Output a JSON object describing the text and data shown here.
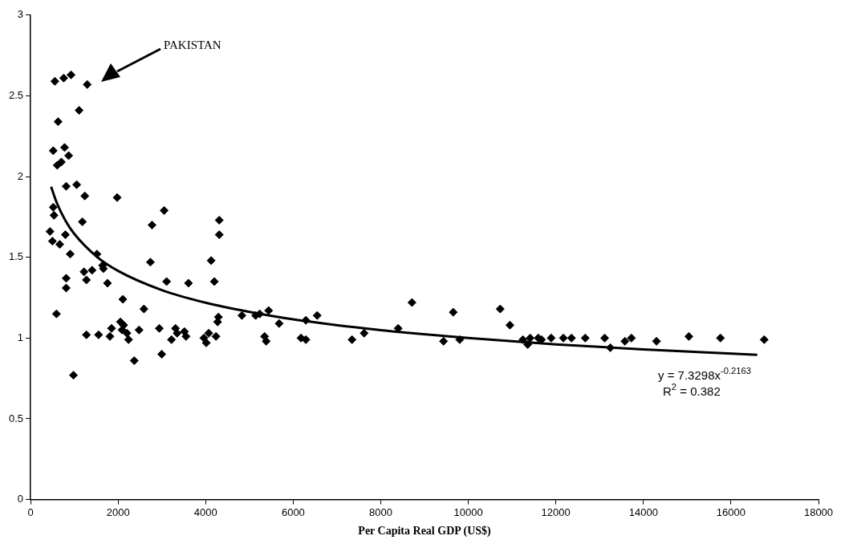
{
  "chart_data": {
    "type": "scatter",
    "xlabel": "Per Capita Real GDP (US$)",
    "xlim": [
      0,
      18000
    ],
    "xticks": [
      0,
      2000,
      4000,
      6000,
      8000,
      10000,
      12000,
      14000,
      16000,
      18000
    ],
    "ylim": [
      0,
      3
    ],
    "yticks": [
      0,
      0.5,
      1,
      1.5,
      2,
      2.5,
      3
    ],
    "grid": false,
    "legend": false,
    "marker": "diamond",
    "annotations": [
      "PAKISTAN",
      "y = 7.3298x$^{-0.2163}$",
      "R$^{2}$ = 0.382"
    ],
    "series": [
      {
        "color": "#000000",
        "x": [
          555,
          758,
          925,
          1295,
          1110,
          629,
          518,
          777,
          870,
          703,
          610,
          814,
          1054,
          1239,
          1979,
          3052,
          4310,
          4310,
          2775,
          4125,
          518,
          536,
          444,
          795,
          499,
          666,
          906,
          1184,
          1517,
          2738,
          1221,
          1406,
          1646,
          1665,
          814,
          1276,
          814,
          1757,
          3108,
          3607,
          4199,
          2109,
          2590,
          592,
          4292,
          4273,
          4828,
          5142,
          5235,
          5438,
          2053,
          2127,
          1850,
          2090,
          2201,
          2238,
          2479,
          1276,
          1554,
          1813,
          2941,
          3311,
          3348,
          3515,
          3552,
          3219,
          4070,
          4236,
          3959,
          4014,
          2997,
          2368,
          980,
          5346,
          5383,
          5679,
          6178,
          6289,
          6289,
          6548,
          7344,
          7621,
          8398,
          8713,
          9434,
          9804,
          9656,
          10729,
          10951,
          11247,
          11358,
          11413,
          11598,
          11672,
          11894,
          12172,
          12357,
          12671,
          13115,
          13245,
          13578,
          13726,
          14299,
          15039,
          15760,
          16759
        ],
        "values": [
          2.59,
          2.61,
          2.63,
          2.57,
          2.41,
          2.34,
          2.16,
          2.18,
          2.13,
          2.09,
          2.07,
          1.94,
          1.95,
          1.88,
          1.87,
          1.79,
          1.73,
          1.64,
          1.7,
          1.48,
          1.81,
          1.76,
          1.66,
          1.64,
          1.6,
          1.58,
          1.52,
          1.72,
          1.52,
          1.47,
          1.41,
          1.42,
          1.45,
          1.43,
          1.37,
          1.36,
          1.31,
          1.34,
          1.35,
          1.34,
          1.35,
          1.24,
          1.18,
          1.15,
          1.13,
          1.1,
          1.14,
          1.14,
          1.15,
          1.17,
          1.1,
          1.08,
          1.06,
          1.05,
          1.03,
          0.99,
          1.05,
          1.02,
          1.02,
          1.01,
          1.06,
          1.06,
          1.03,
          1.04,
          1.01,
          0.99,
          1.03,
          1.01,
          1,
          0.97,
          0.9,
          0.86,
          0.77,
          1.01,
          0.98,
          1.09,
          1,
          0.99,
          1.11,
          1.14,
          0.99,
          1.03,
          1.06,
          1.22,
          0.98,
          0.99,
          1.16,
          1.18,
          1.08,
          0.99,
          0.96,
          1,
          1,
          0.99,
          1,
          1,
          1,
          1,
          1,
          0.94,
          0.98,
          1,
          0.98,
          1.01,
          1,
          0.99
        ]
      },
      {
        "type": "line",
        "color": "#000000",
        "marker": "none",
        "x": [
          470,
          600,
          800,
          1000,
          1500,
          2000,
          3000,
          4000,
          5000,
          6000,
          8000,
          10000,
          12000,
          14000,
          16600
        ],
        "values": [
          1.937,
          1.837,
          1.726,
          1.645,
          1.507,
          1.416,
          1.297,
          1.219,
          1.162,
          1.116,
          1.049,
          1.0,
          0.961,
          0.93,
          0.896
        ]
      }
    ]
  }
}
